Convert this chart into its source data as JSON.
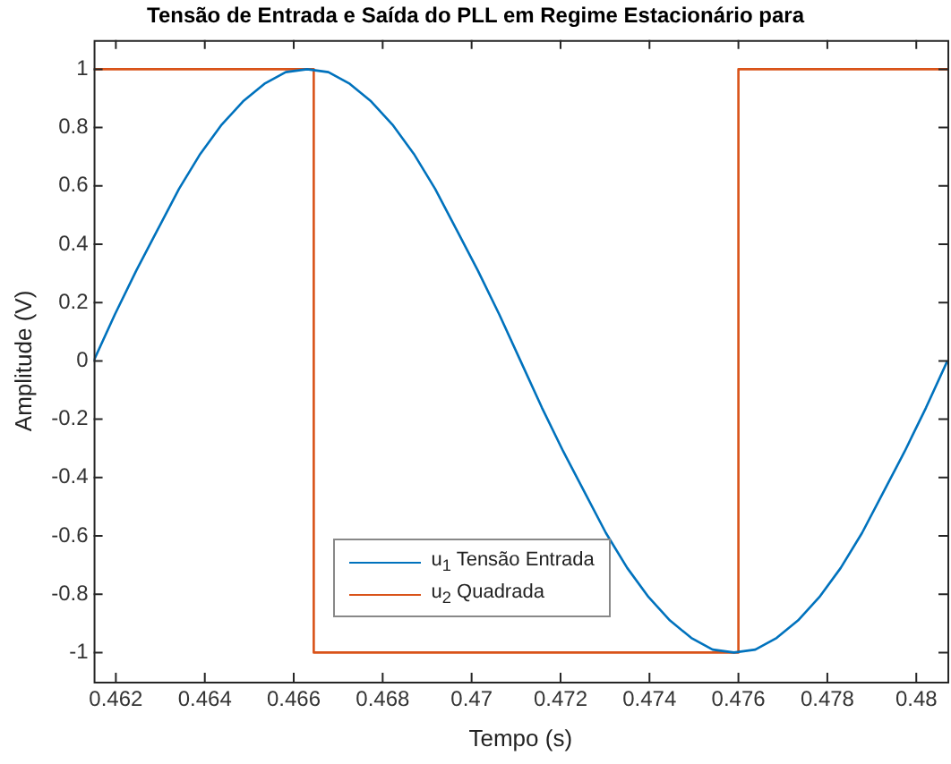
{
  "chart_data": {
    "type": "line",
    "title": "Tensão de Entrada e Saída do PLL em Regime Estacionário para",
    "xlabel": "Tempo (s)",
    "ylabel": "Amplitude (V)",
    "xlim": [
      0.4615,
      0.4807
    ],
    "xticks": [
      0.462,
      0.464,
      0.466,
      0.468,
      0.47,
      0.472,
      0.474,
      0.476,
      0.478,
      0.48
    ],
    "ylim": [
      -1.1,
      1.1
    ],
    "yticks": [
      -1,
      -0.8,
      -0.6,
      -0.4,
      -0.2,
      0,
      0.2,
      0.4,
      0.6,
      0.8,
      1
    ],
    "grid": false,
    "legend": "bottom left",
    "marker": "none",
    "line_style": "solid",
    "series": [
      {
        "name": "u$_{1}$ Tensão Entrada",
        "color": "#0072bd",
        "x": [
          0.4615,
          0.46198,
          0.46246,
          0.46294,
          0.46342,
          0.4639,
          0.46438,
          0.46486,
          0.46534,
          0.46582,
          0.4663,
          0.46678,
          0.46726,
          0.46774,
          0.46822,
          0.4687,
          0.46918,
          0.46966,
          0.47014,
          0.47062,
          0.4711,
          0.47158,
          0.47206,
          0.47254,
          0.47302,
          0.4735,
          0.47398,
          0.47446,
          0.47494,
          0.47542,
          0.4759,
          0.47638,
          0.47686,
          0.47734,
          0.47782,
          0.4783,
          0.47878,
          0.47926,
          0.47974,
          0.48022,
          0.4807
        ],
        "values": [
          0,
          0.16,
          0.31,
          0.45,
          0.59,
          0.71,
          0.81,
          0.89,
          0.95,
          0.99,
          1,
          0.99,
          0.95,
          0.89,
          0.81,
          0.71,
          0.59,
          0.45,
          0.31,
          0.16,
          0,
          -0.16,
          -0.31,
          -0.45,
          -0.59,
          -0.71,
          -0.81,
          -0.89,
          -0.95,
          -0.99,
          -1,
          -0.99,
          -0.95,
          -0.89,
          -0.81,
          -0.71,
          -0.59,
          -0.45,
          -0.31,
          -0.16,
          0
        ]
      },
      {
        "name": "u$_{2}$ Quadrada",
        "color": "#d95319",
        "x": [
          0.4615,
          0.46645,
          0.46645,
          0.476,
          0.476,
          0.4807
        ],
        "values": [
          1,
          1,
          -1,
          -1,
          1,
          1
        ]
      }
    ]
  }
}
